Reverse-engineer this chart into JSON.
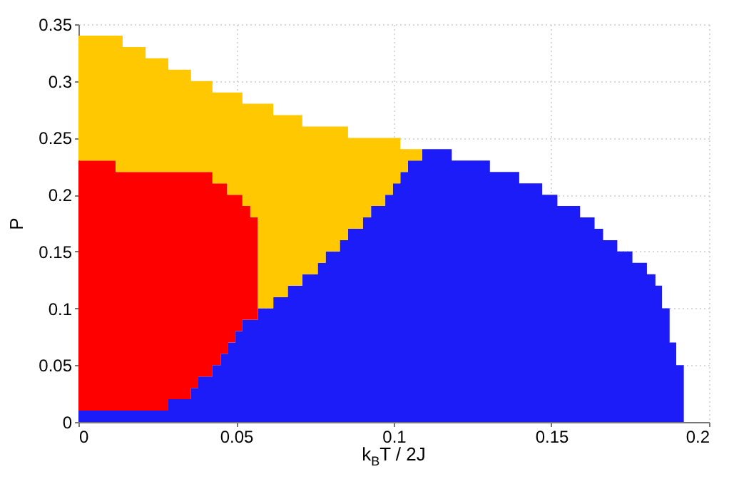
{
  "chart_data": {
    "type": "area",
    "stacked": true,
    "xlabel": "k$_{B}$T / 2J",
    "ylabel": "P",
    "x": [
      0,
      0.0118,
      0.0118,
      0.014,
      0.014,
      0.0213,
      0.0213,
      0.0285,
      0.0285,
      0.0357,
      0.0357,
      0.038,
      0.038,
      0.0425,
      0.0425,
      0.0452,
      0.0452,
      0.0472,
      0.0472,
      0.0475,
      0.0475,
      0.0498,
      0.0498,
      0.052,
      0.052,
      0.0545,
      0.0545,
      0.0569,
      0.0569,
      0.0618,
      0.0618,
      0.0664,
      0.0664,
      0.071,
      0.071,
      0.0759,
      0.0759,
      0.0784,
      0.0784,
      0.0829,
      0.0829,
      0.0855,
      0.0855,
      0.0902,
      0.0902,
      0.0928,
      0.0928,
      0.0973,
      0.0973,
      0.0997,
      0.0997,
      0.1021,
      0.1021,
      0.1045,
      0.1045,
      0.109,
      0.109,
      0.1184,
      0.1184,
      0.1305,
      0.1305,
      0.1398,
      0.1398,
      0.1471,
      0.1471,
      0.1519,
      0.1519,
      0.1591,
      0.1591,
      0.1637,
      0.1637,
      0.1664,
      0.1664,
      0.1709,
      0.1709,
      0.1757,
      0.1757,
      0.1803,
      0.1803,
      0.183,
      0.183,
      0.1851,
      0.1851,
      0.1875,
      0.1875,
      0.1896,
      0.1896,
      0.192
    ],
    "series": [
      {
        "color": "#1c1cf8",
        "values": [
          0.01,
          0.01,
          0.01,
          0.01,
          0.01,
          0.01,
          0.01,
          0.01,
          0.02,
          0.02,
          0.03,
          0.03,
          0.04,
          0.04,
          0.05,
          0.05,
          0.06,
          0.06,
          0.06,
          0.06,
          0.07,
          0.07,
          0.08,
          0.08,
          0.09,
          0.09,
          0.09,
          0.09,
          0.1,
          0.1,
          0.11,
          0.11,
          0.12,
          0.12,
          0.13,
          0.13,
          0.14,
          0.14,
          0.15,
          0.15,
          0.16,
          0.16,
          0.17,
          0.17,
          0.18,
          0.18,
          0.19,
          0.19,
          0.2,
          0.2,
          0.21,
          0.21,
          0.22,
          0.22,
          0.23,
          0.23,
          0.24,
          0.24,
          0.23,
          0.23,
          0.22,
          0.22,
          0.21,
          0.21,
          0.2,
          0.2,
          0.19,
          0.19,
          0.18,
          0.18,
          0.17,
          0.17,
          0.16,
          0.16,
          0.15,
          0.15,
          0.14,
          0.14,
          0.13,
          0.13,
          0.12,
          0.12,
          0.1,
          0.1,
          0.07,
          0.07,
          0.05,
          0.05
        ]
      },
      {
        "color": "#ff0000",
        "values": [
          0.22,
          0.22,
          0.21,
          0.21,
          0.21,
          0.21,
          0.21,
          0.21,
          0.2,
          0.2,
          0.19,
          0.19,
          0.18,
          0.18,
          0.16,
          0.16,
          0.15,
          0.15,
          0.14,
          0.14,
          0.13,
          0.13,
          0.12,
          0.12,
          0.1,
          0.1,
          0.09,
          0.09,
          0,
          0,
          0,
          0,
          0,
          0,
          0,
          0,
          0,
          0,
          0,
          0,
          0,
          0,
          0,
          0,
          0,
          0,
          0,
          0,
          0,
          0,
          0,
          0,
          0,
          0,
          0,
          0,
          0,
          0,
          0,
          0,
          0,
          0,
          0,
          0,
          0,
          0,
          0,
          0,
          0,
          0,
          0,
          0,
          0,
          0,
          0,
          0,
          0,
          0,
          0,
          0,
          0,
          0,
          0,
          0,
          0,
          0,
          0,
          0
        ]
      },
      {
        "color": "#ffc800",
        "values": [
          0.11,
          0.11,
          0.12,
          0.12,
          0.11,
          0.11,
          0.1,
          0.1,
          0.09,
          0.09,
          0.08,
          0.08,
          0.08,
          0.08,
          0.08,
          0.08,
          0.08,
          0.08,
          0.09,
          0.09,
          0.09,
          0.09,
          0.09,
          0.09,
          0.09,
          0.09,
          0.1,
          0.1,
          0.18,
          0.18,
          0.16,
          0.16,
          0.15,
          0.15,
          0.13,
          0.13,
          0.12,
          0.12,
          0.11,
          0.11,
          0.1,
          0.1,
          0.08,
          0.08,
          0.07,
          0.07,
          0.06,
          0.06,
          0.05,
          0.05,
          0.04,
          0.04,
          0.02,
          0.02,
          0.01,
          0.01,
          0,
          0,
          0,
          0,
          0,
          0,
          0,
          0,
          0,
          0,
          0,
          0,
          0,
          0,
          0,
          0,
          0,
          0,
          0,
          0,
          0,
          0,
          0,
          0,
          0,
          0,
          0,
          0,
          0,
          0,
          0,
          0
        ]
      }
    ],
    "xlim": [
      0,
      0.2
    ],
    "xticks": [
      0,
      0.05,
      0.1,
      0.15,
      0.2
    ],
    "ylim": [
      0,
      0.35
    ],
    "yticks": [
      0,
      0.05,
      0.1,
      0.15,
      0.2,
      0.25,
      0.3,
      0.35
    ],
    "grid": true
  }
}
